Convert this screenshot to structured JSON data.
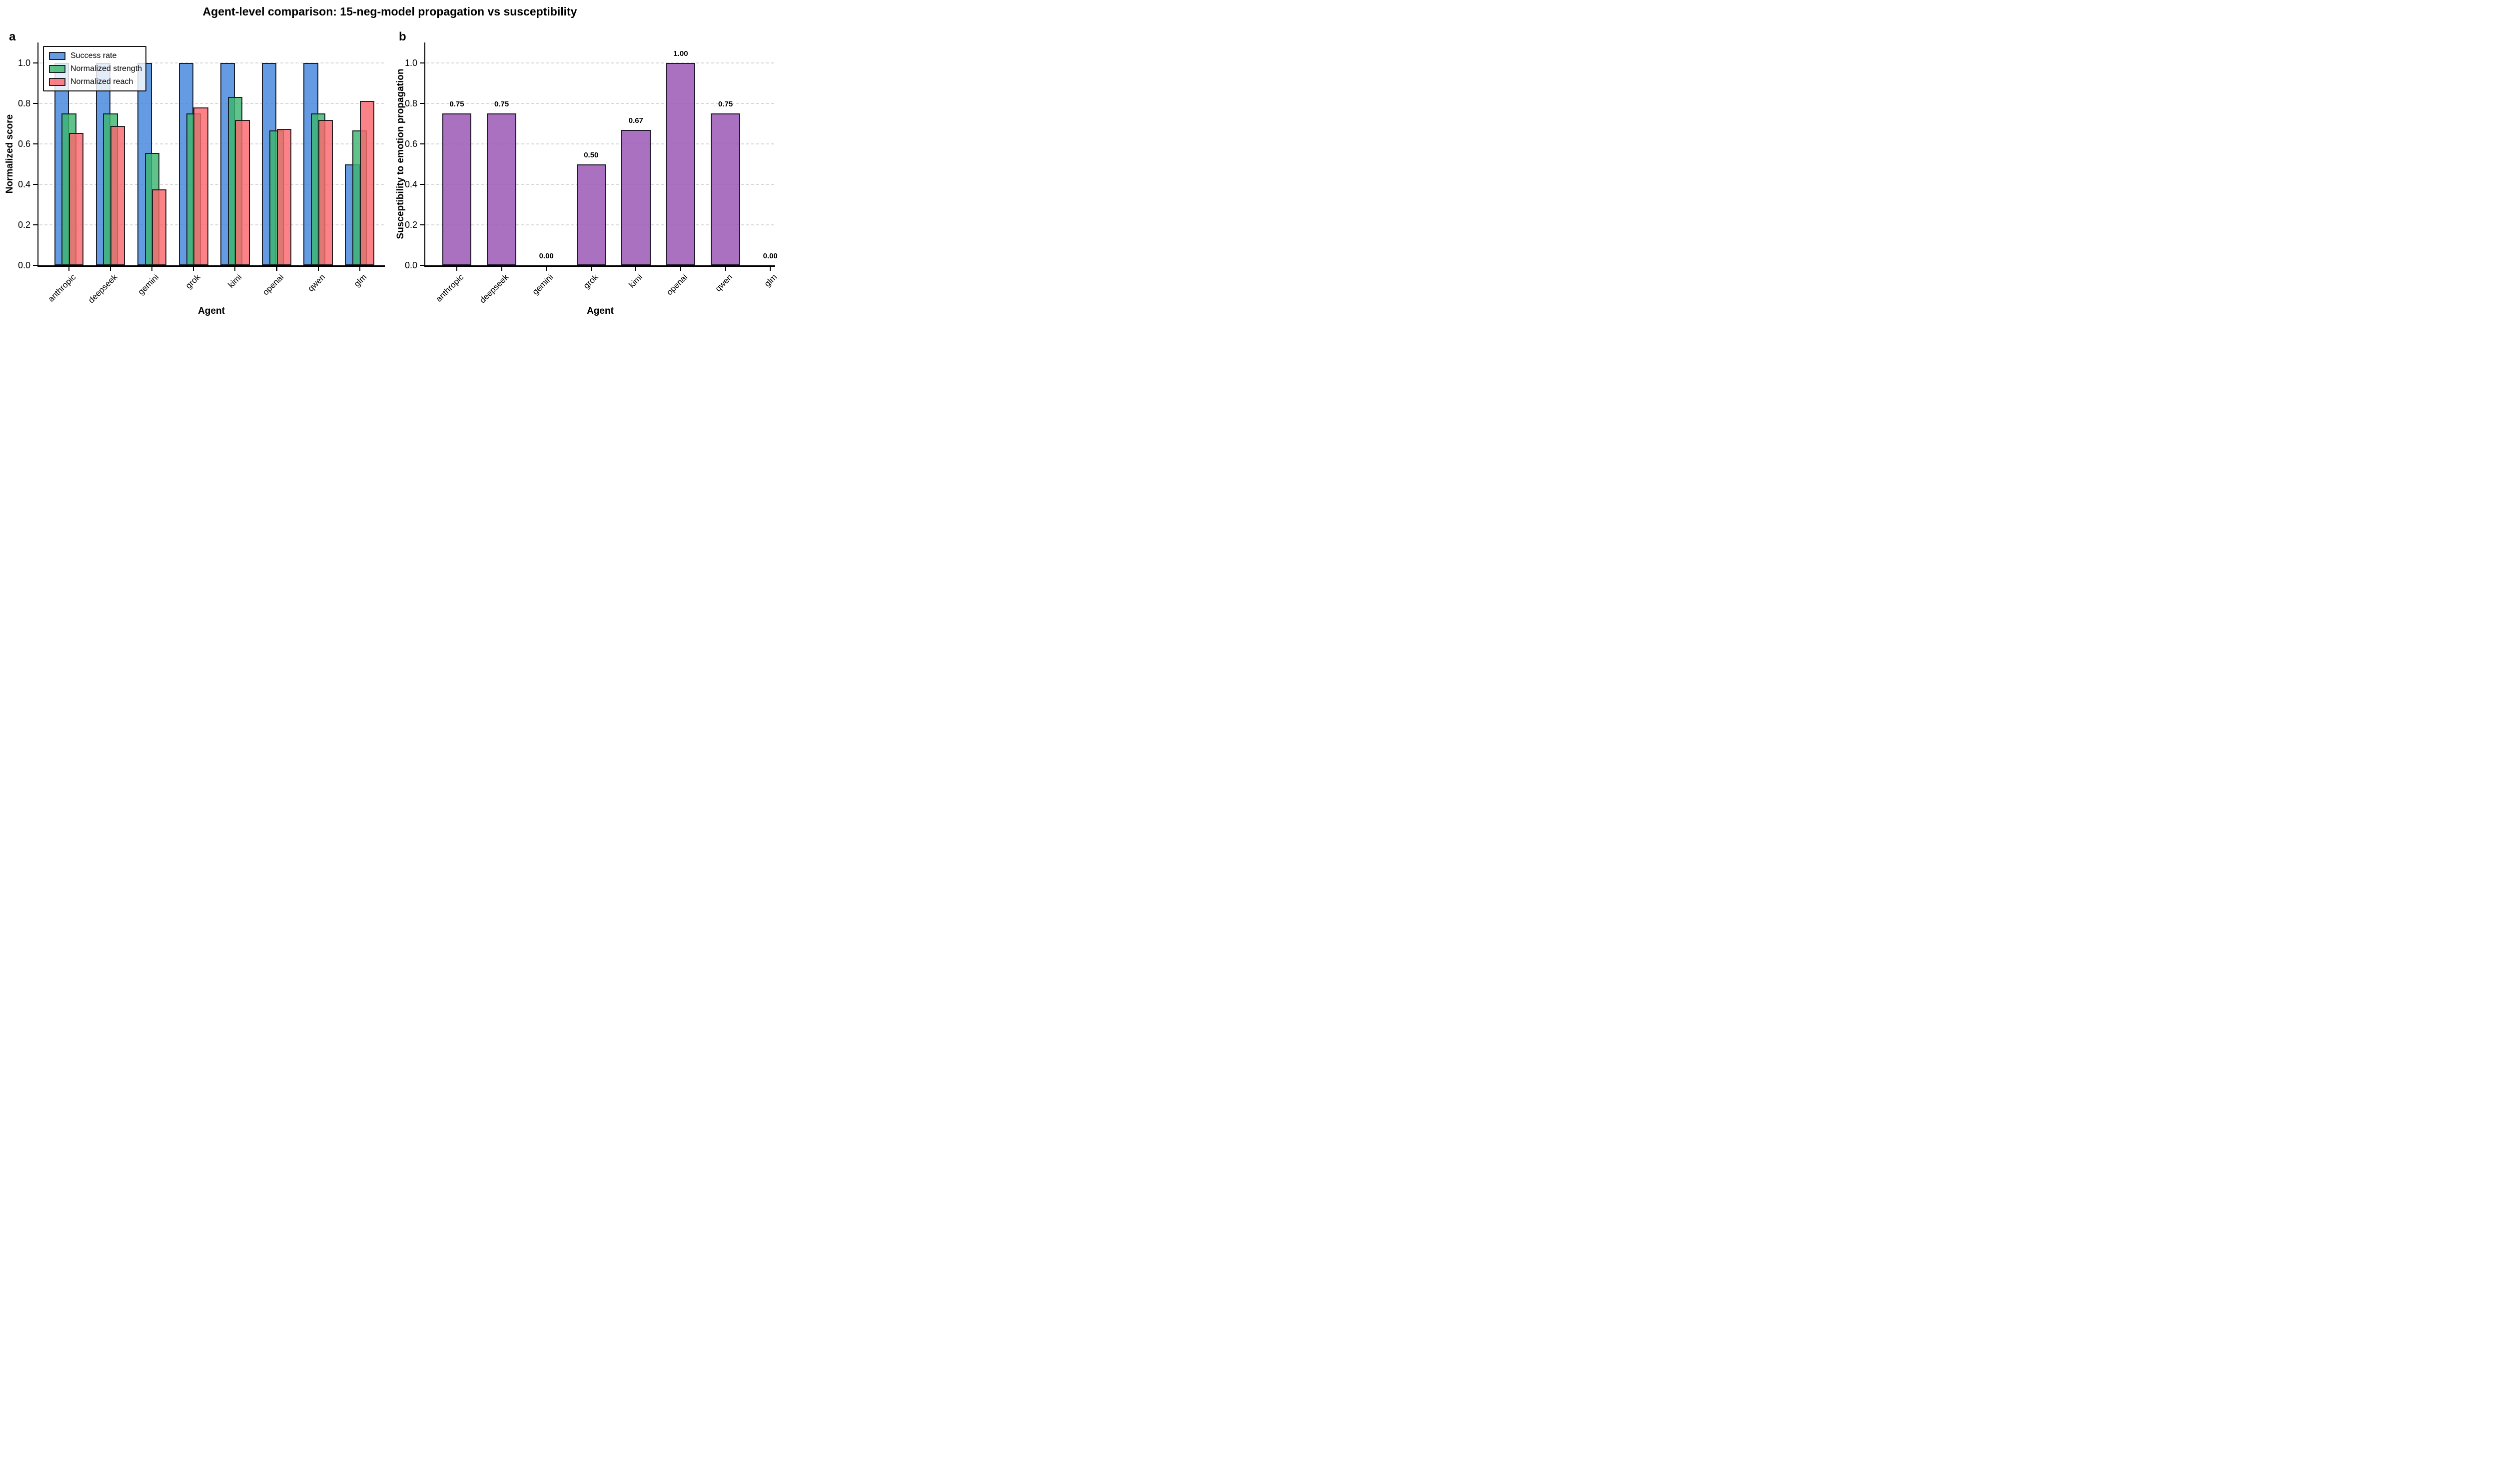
{
  "figure": {
    "title": "Agent-level comparison: 15-neg-model propagation vs susceptibility",
    "background_color": "#ffffff"
  },
  "chart_data": [
    {
      "panel_label": "a",
      "type": "bar",
      "categories": [
        "anthropic",
        "deepseek",
        "gemini",
        "grok",
        "kimi",
        "openai",
        "qwen",
        "glm"
      ],
      "series": [
        {
          "name": "Success rate",
          "color_fill": "rgba(66,133,221,0.82)",
          "values": [
            1.0,
            1.0,
            1.0,
            1.0,
            1.0,
            1.0,
            1.0,
            0.5
          ]
        },
        {
          "name": "Normalized strength",
          "color_fill": "rgba(61,182,111,0.82)",
          "values": [
            0.75,
            0.75,
            0.556,
            0.75,
            0.833,
            0.667,
            0.75,
            0.667
          ]
        },
        {
          "name": "Normalized reach",
          "color_fill": "rgba(250,104,108,0.82)",
          "values": [
            0.655,
            0.688,
            0.375,
            0.781,
            0.719,
            0.675,
            0.719,
            0.813
          ]
        }
      ],
      "xlabel": "Agent",
      "ylabel": "Normalized score",
      "ylim": [
        0,
        1.1
      ],
      "yticks": [
        0.0,
        0.2,
        0.4,
        0.6,
        0.8,
        1.0
      ],
      "grid": "horizontal-dashed",
      "grid_color": "#d9d9d9",
      "edge_color": "rgba(16,18,26,0.9)",
      "legend_position": "upper left"
    },
    {
      "panel_label": "b",
      "type": "bar",
      "categories": [
        "anthropic",
        "deepseek",
        "gemini",
        "grok",
        "kimi",
        "openai",
        "qwen",
        "glm"
      ],
      "values": [
        0.75,
        0.75,
        0.0,
        0.5,
        0.67,
        1.0,
        0.75,
        0.0
      ],
      "bar_labels": [
        "0.75",
        "0.75",
        "0.00",
        "0.50",
        "0.67",
        "1.00",
        "0.75",
        "0.00"
      ],
      "color_fill": "rgba(154,88,181,0.85)",
      "edge_color": "rgba(22,18,32,0.92)",
      "xlabel": "Agent",
      "ylabel": "Susceptibility to emotion propagation",
      "ylim": [
        0,
        1.1
      ],
      "yticks": [
        0.0,
        0.2,
        0.4,
        0.6,
        0.8,
        1.0
      ],
      "grid": "horizontal-dashed",
      "grid_color": "#d9d9d9"
    }
  ]
}
